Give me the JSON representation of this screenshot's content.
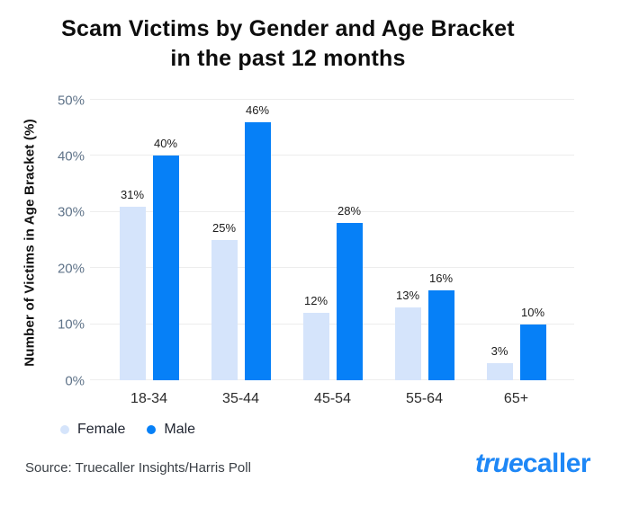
{
  "title": {
    "line1": "Scam Victims by Gender and Age Bracket",
    "line2": "in the past 12 months"
  },
  "chart_data": {
    "type": "bar",
    "categories": [
      "18-34",
      "35-44",
      "45-54",
      "55-64",
      "65+"
    ],
    "series": [
      {
        "name": "Female",
        "color": "#d5e4fb",
        "values": [
          31,
          25,
          12,
          13,
          3
        ]
      },
      {
        "name": "Male",
        "color": "#0680f7",
        "values": [
          40,
          46,
          28,
          16,
          10
        ]
      }
    ],
    "title": "Scam Victims by Gender and Age Bracket in the past 12 months",
    "xlabel": "",
    "ylabel": "Number of Victims in Age Bracket (%)",
    "ylim": [
      0,
      50
    ],
    "yticks": [
      {
        "value": 0,
        "label": "0%"
      },
      {
        "value": 10,
        "label": "10%"
      },
      {
        "value": 20,
        "label": "20%"
      },
      {
        "value": 30,
        "label": "30%"
      },
      {
        "value": 40,
        "label": "40%"
      },
      {
        "value": 50,
        "label": "50%"
      }
    ],
    "value_labels": [
      "31%",
      "40%",
      "25%",
      "46%",
      "12%",
      "28%",
      "13%",
      "16%",
      "3%",
      "10%"
    ],
    "grid": true,
    "legend_position": "bottom-left"
  },
  "footer": {
    "source": "Source: Truecaller Insights/Harris Poll",
    "logo_part1": "true",
    "logo_part2": "caller"
  },
  "colors": {
    "female_bar": "#d5e4fb",
    "male_bar": "#0680f7",
    "gridline": "#ededed",
    "tick_label": "#5f7389",
    "title_text": "#0d0d0d",
    "logo_blue": "#1e87f6"
  }
}
